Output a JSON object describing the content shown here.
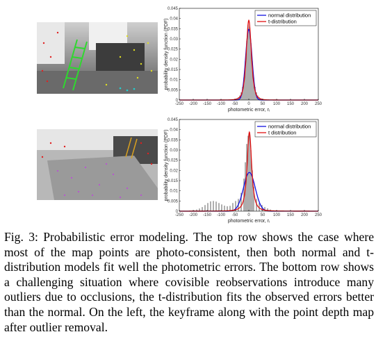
{
  "figure": {
    "caption_label": "Fig. 3:",
    "caption_text": "Probabilistic error modeling. The top row shows the case where most of the map points are photo-consistent, then both normal and t-distribution models fit well the photometric errors. The bottom row shows a challenging situation where covisible reobservations introduce many outliers due to occlusions, the t-distribution fits the observed errors better than the normal. On the left, the keyframe along with the point depth map after outlier removal."
  },
  "colors": {
    "normal": "#1010e0",
    "t_dist": "#e01010",
    "hist": "#8c8c8c",
    "frame": "#000000"
  },
  "chart_data": [
    {
      "type": "bar",
      "title": "",
      "xlabel": "photometric error, rᵢ",
      "ylabel": "probability density function (PDF)",
      "xlim": [
        -250,
        250
      ],
      "ylim": [
        0,
        0.045
      ],
      "xticks": [
        -250,
        -200,
        -150,
        -100,
        -50,
        0,
        50,
        100,
        150,
        200,
        250
      ],
      "yticks": [
        0,
        0.005,
        0.01,
        0.015,
        0.02,
        0.025,
        0.03,
        0.035,
        0.04,
        0.045
      ],
      "legend_position": "top-right",
      "series": [
        {
          "name": "normal distribution",
          "type": "line",
          "mean": 0,
          "std": 11.5
        },
        {
          "name": "t-distribution",
          "type": "line",
          "loc": 0,
          "scale": 9.5,
          "dof": 3.5
        }
      ],
      "histogram": {
        "bin_width": 5,
        "bin_centers": [
          -47.5,
          -42.5,
          -37.5,
          -32.5,
          -27.5,
          -22.5,
          -17.5,
          -12.5,
          -7.5,
          -2.5,
          2.5,
          7.5,
          12.5,
          17.5,
          22.5,
          27.5,
          32.5,
          37.5,
          42.5,
          47.5
        ],
        "values": [
          0.0006,
          0.0009,
          0.0014,
          0.0022,
          0.0038,
          0.0065,
          0.011,
          0.019,
          0.029,
          0.037,
          0.036,
          0.028,
          0.019,
          0.011,
          0.0065,
          0.0038,
          0.0022,
          0.0014,
          0.0009,
          0.0006
        ]
      }
    },
    {
      "type": "bar",
      "title": "",
      "xlabel": "photometric error, rᵢ",
      "ylabel": "probability density function (PDF)",
      "xlim": [
        -250,
        250
      ],
      "ylim": [
        0,
        0.045
      ],
      "xticks": [
        -250,
        -200,
        -150,
        -100,
        -50,
        0,
        50,
        100,
        150,
        200,
        250
      ],
      "yticks": [
        0,
        0.005,
        0.01,
        0.015,
        0.02,
        0.025,
        0.03,
        0.035,
        0.04,
        0.045
      ],
      "legend_position": "top-right",
      "series": [
        {
          "name": "normal distribution",
          "type": "line",
          "mean": 2,
          "std": 21
        },
        {
          "name": "t distribution",
          "type": "line",
          "loc": 2,
          "scale": 9,
          "dof": 1.8
        }
      ],
      "histogram": {
        "bin_width": 5,
        "bin_centers": [
          -197.5,
          -187.5,
          -177.5,
          -167.5,
          -157.5,
          -147.5,
          -137.5,
          -127.5,
          -117.5,
          -107.5,
          -97.5,
          -87.5,
          -77.5,
          -67.5,
          -57.5,
          -47.5,
          -37.5,
          -27.5,
          -17.5,
          -12.5,
          -7.5,
          -2.5,
          2.5,
          7.5,
          12.5,
          17.5,
          27.5,
          37.5,
          47.5,
          57.5,
          67.5,
          77.5,
          87.5
        ],
        "values": [
          0.0004,
          0.0008,
          0.0013,
          0.002,
          0.003,
          0.004,
          0.0048,
          0.005,
          0.0047,
          0.004,
          0.0033,
          0.0027,
          0.0024,
          0.0026,
          0.004,
          0.005,
          0.006,
          0.009,
          0.016,
          0.024,
          0.033,
          0.037,
          0.038,
          0.03,
          0.02,
          0.012,
          0.006,
          0.004,
          0.003,
          0.002,
          0.0014,
          0.0008,
          0.0004
        ]
      }
    }
  ]
}
